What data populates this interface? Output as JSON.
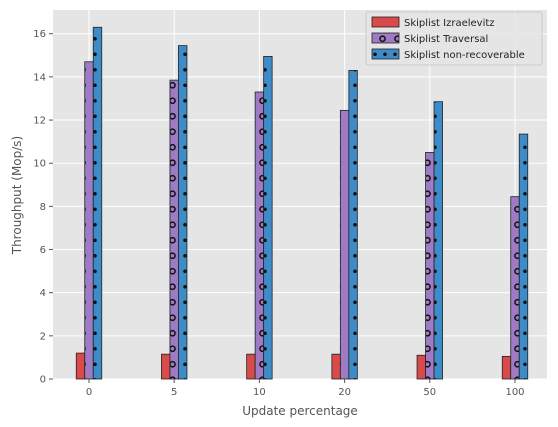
{
  "chart_data": {
    "type": "bar",
    "title": "",
    "xlabel": "Update percentage",
    "ylabel": "Throughput (Mop/s)",
    "categories": [
      "0",
      "5",
      "10",
      "20",
      "50",
      "100"
    ],
    "ylim": [
      0,
      17.1
    ],
    "yticks": [
      0,
      2,
      4,
      6,
      8,
      10,
      12,
      14,
      16
    ],
    "grid": true,
    "legend_position": "top-right",
    "series": [
      {
        "name": "Skiplist Izraelevitz",
        "color": "#d94a4a",
        "hatch": "none",
        "values": [
          1.2,
          1.15,
          1.15,
          1.15,
          1.1,
          1.05
        ]
      },
      {
        "name": "Skiplist Traversal",
        "color": "#9e7bc4",
        "hatch": "rings",
        "values": [
          14.7,
          13.85,
          13.3,
          12.45,
          10.5,
          8.45
        ]
      },
      {
        "name": "Skiplist non-recoverable",
        "color": "#3d8cc8",
        "hatch": "dots",
        "values": [
          16.3,
          15.45,
          14.95,
          14.3,
          12.85,
          11.35
        ]
      }
    ]
  }
}
